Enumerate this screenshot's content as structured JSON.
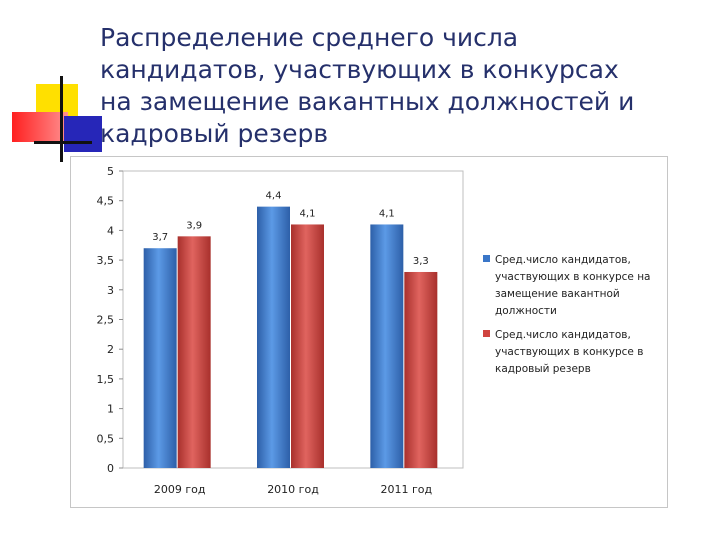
{
  "slide": {
    "title_lines": [
      "Распределение среднего числа",
      "кандидатов, участвующих в конкурсах",
      "на замещение вакантных должностей и",
      "кадровый резерв"
    ]
  },
  "colors": {
    "title": "#25306b",
    "series_blue": "#3a76c8",
    "series_red": "#d0433f",
    "grid": "#d9d9d9"
  },
  "chart_data": {
    "type": "bar",
    "categories": [
      "2009 год",
      "2010 год",
      "2011 год"
    ],
    "series": [
      {
        "name": "Сред.число кандидатов, участвующих в конкурсе на замещение вакантной должности",
        "legend_lines": [
          "Сред.число кандидатов,",
          "участвующих в конкурсе на",
          "замещение вакантной",
          "должности"
        ],
        "values": [
          3.7,
          4.4,
          4.1
        ],
        "labels": [
          "3,7",
          "4,4",
          "4,1"
        ]
      },
      {
        "name": "Сред.число кандидатов, участвующих в конкурсе в кадровый резерв",
        "legend_lines": [
          "Сред.число кандидатов,",
          "участвующих в конкурсе в",
          "кадровый резерв"
        ],
        "values": [
          3.9,
          4.1,
          3.3
        ],
        "labels": [
          "3,9",
          "4,1",
          "3,3"
        ]
      }
    ],
    "ylim": [
      0,
      5
    ],
    "yticks": [
      "0",
      "0,5",
      "1",
      "1,5",
      "2",
      "2,5",
      "3",
      "3,5",
      "4",
      "4,5",
      "5"
    ],
    "title": "",
    "xlabel": "",
    "ylabel": "",
    "grid": false,
    "legend_position": "right"
  }
}
